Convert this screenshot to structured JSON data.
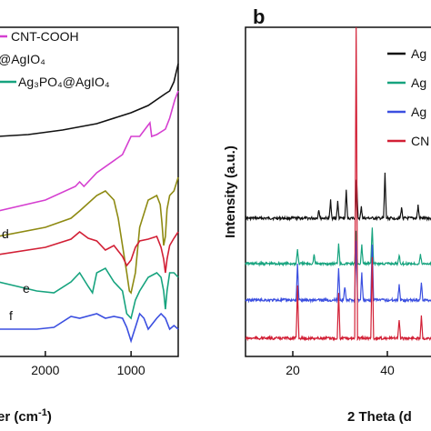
{
  "chart_data": [
    {
      "panel": "",
      "type": "line",
      "x_axis_label": "er (cm⁻¹)",
      "x_range": [
        2550,
        450
      ],
      "x_ticks": [
        2000,
        1000
      ],
      "legend": [
        "CNT-COOH",
        "@AgIO₄",
        "Ag₃PO₄@AgIO₄"
      ],
      "annotations": [
        "d",
        "e",
        "f"
      ],
      "series": [
        {
          "color": "#111111",
          "x": [
            2550,
            2200,
            1800,
            1400,
            1000,
            800,
            600,
            550,
            500,
            470,
            450
          ],
          "y": [
            150,
            148,
            143,
            136,
            124,
            116,
            103,
            100,
            90,
            78,
            70
          ]
        },
        {
          "color": "#d53fd0",
          "x": [
            2550,
            2000,
            1650,
            1600,
            1550,
            1400,
            1100,
            1000,
            900,
            820,
            780,
            760,
            700,
            600,
            550,
            520,
            490,
            450
          ],
          "y": [
            232,
            220,
            205,
            200,
            205,
            190,
            170,
            150,
            150,
            140,
            135,
            150,
            148,
            142,
            130,
            120,
            110,
            100
          ]
        },
        {
          "color": "#8e8a12",
          "x": [
            2550,
            2000,
            1700,
            1600,
            1400,
            1300,
            1200,
            1150,
            1100,
            1050,
            1020,
            1000,
            950,
            900,
            800,
            700,
            660,
            640,
            620,
            600,
            580,
            550,
            500,
            450
          ],
          "y": [
            260,
            250,
            240,
            232,
            215,
            210,
            220,
            240,
            270,
            300,
            320,
            322,
            300,
            250,
            220,
            215,
            225,
            245,
            270,
            260,
            230,
            215,
            210,
            195
          ]
        },
        {
          "color": "#d21f35",
          "x": [
            2550,
            2000,
            1700,
            1600,
            1500,
            1400,
            1300,
            1200,
            1100,
            1050,
            1000,
            950,
            900,
            800,
            700,
            650,
            620,
            600,
            580,
            550,
            500,
            450
          ],
          "y": [
            280,
            272,
            263,
            255,
            262,
            265,
            275,
            270,
            282,
            292,
            286,
            272,
            265,
            263,
            260,
            272,
            285,
            300,
            285,
            270,
            262,
            255
          ]
        },
        {
          "color": "#16a37e",
          "x": [
            2550,
            2100,
            1900,
            1700,
            1600,
            1500,
            1450,
            1400,
            1300,
            1200,
            1100,
            1050,
            1000,
            950,
            900,
            800,
            700,
            650,
            620,
            600,
            580,
            550,
            500,
            450
          ],
          "y": [
            310,
            320,
            322,
            310,
            300,
            315,
            322,
            300,
            295,
            310,
            320,
            345,
            350,
            330,
            320,
            305,
            300,
            305,
            320,
            340,
            320,
            300,
            300,
            305
          ]
        },
        {
          "color": "#3b4fe0",
          "x": [
            2550,
            2100,
            1900,
            1700,
            1600,
            1400,
            1300,
            1200,
            1100,
            1050,
            1000,
            950,
            900,
            850,
            800,
            700,
            650,
            600,
            550,
            500,
            450
          ],
          "y": [
            362,
            362,
            360,
            348,
            350,
            345,
            350,
            348,
            350,
            360,
            375,
            360,
            345,
            350,
            362,
            350,
            345,
            350,
            362,
            358,
            362
          ]
        }
      ]
    },
    {
      "panel": "b",
      "type": "line",
      "x_axis_label": "2 Theta (d",
      "y_axis_label": "Intensity (a.u.)",
      "x_range": [
        10,
        50
      ],
      "x_ticks": [
        20,
        40
      ],
      "legend": [
        "Ag",
        "Ag",
        "Ag",
        "CN"
      ],
      "series": [
        {
          "color": "#111111",
          "baseline": 240,
          "peaks": [
            [
              25.5,
              10
            ],
            [
              28,
              20
            ],
            [
              29.5,
              18
            ],
            [
              31.3,
              30
            ],
            [
              33.5,
              42
            ],
            [
              34.5,
              12
            ],
            [
              39.5,
              50
            ],
            [
              43,
              12
            ],
            [
              46.5,
              14
            ]
          ]
        },
        {
          "color": "#16a37e",
          "baseline": 290,
          "peaks": [
            [
              21,
              16
            ],
            [
              24.5,
              10
            ],
            [
              29.7,
              22
            ],
            [
              33.4,
              35
            ],
            [
              34.6,
              20
            ],
            [
              36.8,
              40
            ],
            [
              42.5,
              10
            ],
            [
              47,
              10
            ]
          ]
        },
        {
          "color": "#3b4fe0",
          "baseline": 330,
          "peaks": [
            [
              21,
              40
            ],
            [
              29.7,
              35
            ],
            [
              31,
              15
            ],
            [
              33.4,
              65
            ],
            [
              34.6,
              30
            ],
            [
              36.8,
              60
            ],
            [
              42.5,
              18
            ],
            [
              47.2,
              20
            ]
          ]
        },
        {
          "color": "#d21f35",
          "baseline": 372,
          "peaks": [
            [
              21,
              58
            ],
            [
              29.7,
              50
            ],
            [
              33.4,
              370
            ],
            [
              36.8,
              90
            ],
            [
              42.5,
              20
            ],
            [
              47.2,
              25
            ]
          ]
        }
      ]
    }
  ]
}
